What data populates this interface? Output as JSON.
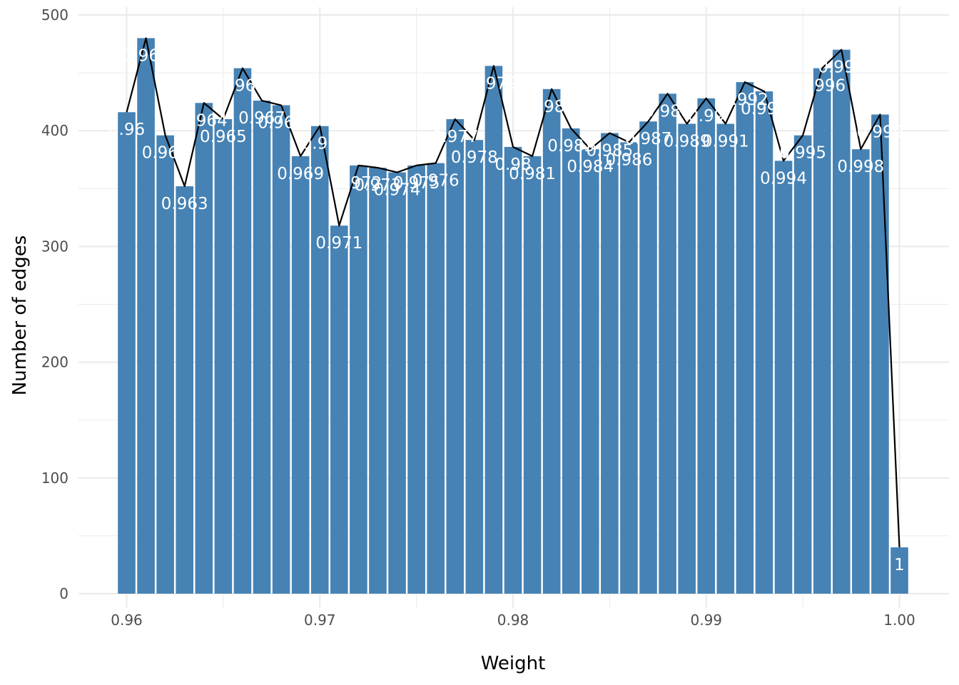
{
  "chart_data": {
    "type": "bar",
    "title": "",
    "xlabel": "Weight",
    "ylabel": "Number of edges",
    "xlim": [
      0.9575,
      1.0025
    ],
    "ylim": [
      0,
      500
    ],
    "x_ticks": [
      "0.96",
      "0.97",
      "0.98",
      "0.99",
      "1.00"
    ],
    "y_ticks": [
      "0",
      "100",
      "200",
      "300",
      "400",
      "500"
    ],
    "grid": true,
    "overlay": "line",
    "bar_color": "#4682B4",
    "line_color": "#000000",
    "label_color": "#FFFFFF",
    "background": "#FFFFFF",
    "grid_color": "#EBEBEB",
    "x": [
      0.96,
      0.961,
      0.962,
      0.963,
      0.964,
      0.965,
      0.966,
      0.967,
      0.968,
      0.969,
      0.97,
      0.971,
      0.972,
      0.973,
      0.974,
      0.975,
      0.976,
      0.977,
      0.978,
      0.979,
      0.98,
      0.981,
      0.982,
      0.983,
      0.984,
      0.985,
      0.986,
      0.987,
      0.988,
      0.989,
      0.99,
      0.991,
      0.992,
      0.993,
      0.994,
      0.995,
      0.996,
      0.997,
      0.998,
      0.999,
      1.0
    ],
    "values": [
      416,
      480,
      396,
      352,
      424,
      410,
      454,
      426,
      422,
      378,
      404,
      318,
      370,
      368,
      364,
      370,
      372,
      410,
      392,
      456,
      386,
      378,
      436,
      402,
      384,
      398,
      390,
      408,
      432,
      406,
      428,
      406,
      442,
      434,
      374,
      396,
      454,
      470,
      384,
      414,
      40
    ],
    "labels": [
      "0.96",
      "0.961",
      "0.962",
      "0.963",
      "0.964",
      "0.965",
      "0.966",
      "0.967",
      "0.968",
      "0.969",
      "0.97",
      "0.971",
      "0.972",
      "0.973",
      "0.974",
      "0.975",
      "0.976",
      "0.977",
      "0.978",
      "0.979",
      "0.98",
      "0.981",
      "0.982",
      "0.983",
      "0.984",
      "0.985",
      "0.986",
      "0.987",
      "0.988",
      "0.989",
      "0.99",
      "0.991",
      "0.992",
      "0.993",
      "0.994",
      "0.995",
      "0.996",
      "0.997",
      "0.998",
      "0.999",
      "1"
    ]
  }
}
